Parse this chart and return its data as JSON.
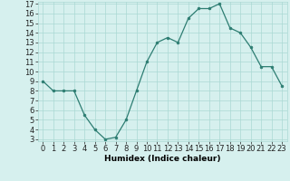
{
  "x": [
    0,
    1,
    2,
    3,
    4,
    5,
    6,
    7,
    8,
    9,
    10,
    11,
    12,
    13,
    14,
    15,
    16,
    17,
    18,
    19,
    20,
    21,
    22,
    23
  ],
  "y": [
    9.0,
    8.0,
    8.0,
    8.0,
    5.5,
    4.0,
    3.0,
    3.2,
    5.0,
    8.0,
    11.0,
    13.0,
    13.5,
    13.0,
    15.5,
    16.5,
    16.5,
    17.0,
    14.5,
    14.0,
    12.5,
    10.5,
    10.5,
    8.5
  ],
  "xlabel": "Humidex (Indice chaleur)",
  "bg_color": "#d6f0ee",
  "line_color": "#2d7d72",
  "marker_color": "#2d7d72",
  "grid_color": "#aad8d3",
  "xlim_min": -0.5,
  "xlim_max": 23.5,
  "ylim_min": 2.8,
  "ylim_max": 17.2,
  "xtick_values": [
    0,
    1,
    2,
    3,
    4,
    5,
    6,
    7,
    8,
    9,
    10,
    11,
    12,
    13,
    14,
    15,
    16,
    17,
    18,
    19,
    20,
    21,
    22,
    23
  ],
  "ytick_values": [
    3,
    4,
    5,
    6,
    7,
    8,
    9,
    10,
    11,
    12,
    13,
    14,
    15,
    16,
    17
  ],
  "label_fontsize": 6.5,
  "tick_fontsize": 6.0
}
